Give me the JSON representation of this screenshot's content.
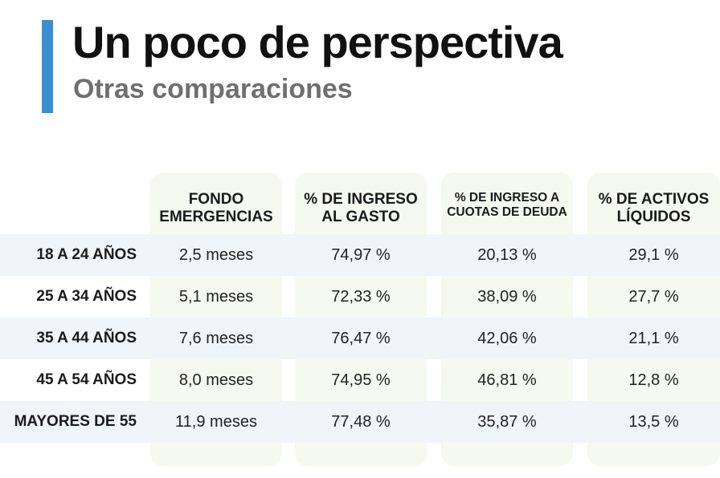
{
  "header": {
    "title": "Un poco de perspectiva",
    "subtitle": "Otras comparaciones",
    "accent_color": "#3a8fd0"
  },
  "table": {
    "columns": [
      {
        "line1": "FONDO",
        "line2": "EMERGENCIAS"
      },
      {
        "line1": "% DE INGRESO",
        "line2": "AL GASTO"
      },
      {
        "line1": "% DE INGRESO A",
        "line2": "CUOTAS DE DEUDA"
      },
      {
        "line1": "% DE ACTIVOS",
        "line2": "LÍQUIDOS"
      }
    ],
    "rows": [
      {
        "label": "18 A 24 AÑOS",
        "cells": [
          "2,5 meses",
          "74,97 %",
          "20,13 %",
          "29,1 %"
        ]
      },
      {
        "label": "25 A 34 AÑOS",
        "cells": [
          "5,1 meses",
          "72,33 %",
          "38,09 %",
          "27,7 %"
        ]
      },
      {
        "label": "35 A 44 AÑOS",
        "cells": [
          "7,6 meses",
          "76,47 %",
          "42,06 %",
          "21,1 %"
        ]
      },
      {
        "label": "45 A 54 AÑOS",
        "cells": [
          "8,0 meses",
          "74,95 %",
          "46,81 %",
          "12,8 %"
        ]
      },
      {
        "label": "MAYORES DE 55",
        "cells": [
          "11,9 meses",
          "77,48 %",
          "35,87 %",
          "13,5 %"
        ]
      }
    ]
  }
}
